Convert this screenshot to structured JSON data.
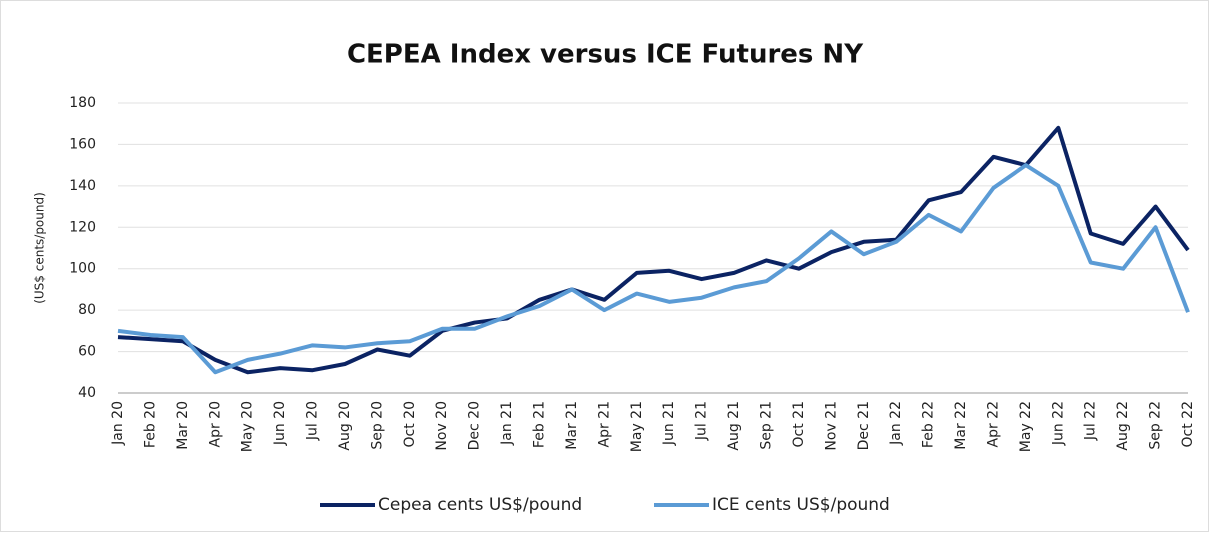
{
  "chart_data": {
    "type": "line",
    "title": "CEPEA Index versus ICE Futures NY",
    "y_label": "(US$ cents/pound)",
    "categories": [
      "Jan 20",
      "Feb 20",
      "Mar 20",
      "Apr 20",
      "May 20",
      "Jun 20",
      "Jul 20",
      "Aug 20",
      "Sep 20",
      "Oct 20",
      "Nov 20",
      "Dec 20",
      "Jan 21",
      "Feb 21",
      "Mar 21",
      "Apr 21",
      "May 21",
      "Jun 21",
      "Jul 21",
      "Aug 21",
      "Sep 21",
      "Oct 21",
      "Nov 21",
      "Dec 21",
      "Jan 22",
      "Feb 22",
      "Mar 22",
      "Apr 22",
      "May 22",
      "Jun 22",
      "Jul 22",
      "Aug 22",
      "Sep 22",
      "Oct 22"
    ],
    "series": [
      {
        "name": "Cepea cents US$/pound",
        "color": "#0b2363",
        "values": [
          67,
          66,
          65,
          56,
          50,
          52,
          51,
          54,
          61,
          58,
          70,
          74,
          76,
          85,
          90,
          85,
          98,
          99,
          95,
          98,
          104,
          100,
          108,
          113,
          114,
          133,
          137,
          154,
          150,
          168,
          117,
          112,
          130,
          109
        ]
      },
      {
        "name": "ICE cents US$/pound",
        "color": "#5b9bd5",
        "values": [
          70,
          68,
          67,
          50,
          56,
          59,
          63,
          62,
          64,
          65,
          71,
          71,
          77,
          82,
          90,
          80,
          88,
          84,
          86,
          91,
          94,
          105,
          118,
          107,
          113,
          126,
          118,
          139,
          150,
          140,
          103,
          100,
          120,
          79
        ]
      }
    ],
    "ylim": [
      40,
      180
    ],
    "yticks": [
      40,
      60,
      80,
      100,
      120,
      140,
      160,
      180
    ],
    "grid": true,
    "legend": "bottom"
  }
}
